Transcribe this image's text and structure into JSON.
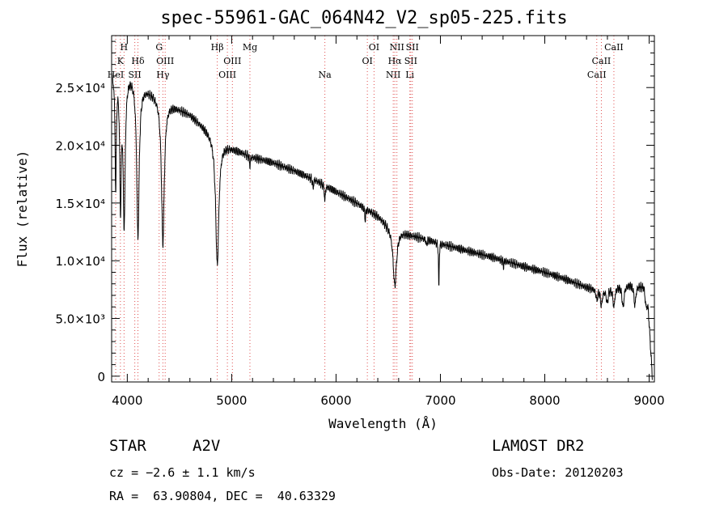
{
  "chart_data": {
    "type": "line",
    "title": "spec-55961-GAC_064N42_V2_sp05-225.fits",
    "xlabel": "Wavelength (Å)",
    "ylabel": "Flux (relative)",
    "xlim": [
      3850,
      9050
    ],
    "ylim": [
      -500,
      29500
    ],
    "xticks": [
      4000,
      5000,
      6000,
      7000,
      8000,
      9000
    ],
    "xtick_labels": [
      "4000",
      "5000",
      "6000",
      "7000",
      "8000",
      "9000"
    ],
    "yticks": [
      0,
      5000,
      10000,
      15000,
      20000,
      25000
    ],
    "ytick_labels": [
      "0",
      "5.0×10³",
      "1.0×10⁴",
      "1.5×10⁴",
      "2.0×10⁴",
      "2.5×10⁴"
    ],
    "series": [
      {
        "continuum": [
          [
            3860,
            26500
          ],
          [
            3950,
            26800
          ],
          [
            4050,
            26200
          ],
          [
            4150,
            25200
          ],
          [
            4300,
            24300
          ],
          [
            4400,
            23700
          ],
          [
            4500,
            23200
          ],
          [
            4600,
            22700
          ],
          [
            4700,
            21900
          ],
          [
            4800,
            21100
          ],
          [
            4900,
            20300
          ],
          [
            5000,
            19800
          ],
          [
            5100,
            19400
          ],
          [
            5200,
            19000
          ],
          [
            5400,
            18500
          ],
          [
            5600,
            17800
          ],
          [
            5800,
            17000
          ],
          [
            6000,
            16000
          ],
          [
            6200,
            15000
          ],
          [
            6400,
            13900
          ],
          [
            6500,
            13100
          ],
          [
            6700,
            12300
          ],
          [
            7000,
            11500
          ],
          [
            7200,
            11000
          ],
          [
            7500,
            10300
          ],
          [
            7800,
            9500
          ],
          [
            8000,
            9000
          ],
          [
            8200,
            8400
          ],
          [
            8400,
            7700
          ],
          [
            8550,
            7400
          ],
          [
            8700,
            7800
          ],
          [
            8850,
            8000
          ],
          [
            8950,
            7700
          ],
          [
            8970,
            6000
          ]
        ],
        "absorption_lines": [
          {
            "center": 3889,
            "depth": 10000,
            "width": 7
          },
          {
            "center": 3935,
            "depth": 11000,
            "width": 9
          },
          {
            "center": 3970,
            "depth": 13000,
            "width": 12
          },
          {
            "center": 4102,
            "depth": 13500,
            "width": 14
          },
          {
            "center": 4341,
            "depth": 12500,
            "width": 16
          },
          {
            "center": 4862,
            "depth": 11000,
            "width": 18
          },
          {
            "center": 5175,
            "depth": 800,
            "width": 5
          },
          {
            "center": 5780,
            "depth": 900,
            "width": 4
          },
          {
            "center": 5893,
            "depth": 1400,
            "width": 5
          },
          {
            "center": 6280,
            "depth": 1000,
            "width": 5
          },
          {
            "center": 6563,
            "depth": 5000,
            "width": 20
          },
          {
            "center": 6867,
            "depth": 600,
            "width": 4
          },
          {
            "center": 6985,
            "depth": 4400,
            "width": 3
          },
          {
            "center": 7605,
            "depth": 500,
            "width": 4
          },
          {
            "center": 8498,
            "depth": 900,
            "width": 8
          },
          {
            "center": 8542,
            "depth": 1300,
            "width": 9
          },
          {
            "center": 8598,
            "depth": 1200,
            "width": 9
          },
          {
            "center": 8662,
            "depth": 1700,
            "width": 10
          },
          {
            "center": 8750,
            "depth": 1900,
            "width": 11
          },
          {
            "center": 8863,
            "depth": 1800,
            "width": 11
          }
        ]
      }
    ],
    "line_markers": [
      {
        "wave": 3889,
        "label": "HeI",
        "row": 2
      },
      {
        "wave": 3934,
        "label": "K",
        "row": 1
      },
      {
        "wave": 3969,
        "label": "H",
        "row": 0
      },
      {
        "wave": 4072,
        "label": "SII",
        "row": 2
      },
      {
        "wave": 4102,
        "label": "Hδ",
        "row": 1
      },
      {
        "wave": 4305,
        "label": "G",
        "row": 0
      },
      {
        "wave": 4341,
        "label": "Hγ",
        "row": 2
      },
      {
        "wave": 4363,
        "label": "OIII",
        "row": 1
      },
      {
        "wave": 4862,
        "label": "Hβ",
        "row": 0
      },
      {
        "wave": 4959,
        "label": "OIII",
        "row": 2
      },
      {
        "wave": 5007,
        "label": "OIII",
        "row": 1
      },
      {
        "wave": 5175,
        "label": "Mg",
        "row": 0
      },
      {
        "wave": 5893,
        "label": "Na",
        "row": 2
      },
      {
        "wave": 6300,
        "label": "OI",
        "row": 1
      },
      {
        "wave": 6364,
        "label": "OI",
        "row": 0
      },
      {
        "wave": 6548,
        "label": "NII",
        "row": 2
      },
      {
        "wave": 6563,
        "label": "Hα",
        "row": 1
      },
      {
        "wave": 6583,
        "label": "NII",
        "row": 0
      },
      {
        "wave": 6707,
        "label": "Li",
        "row": 2
      },
      {
        "wave": 6716,
        "label": "SII",
        "row": 1
      },
      {
        "wave": 6731,
        "label": "SII",
        "row": 0
      },
      {
        "wave": 8498,
        "label": "CaII",
        "row": 2
      },
      {
        "wave": 8542,
        "label": "CaII",
        "row": 1
      },
      {
        "wave": 8662,
        "label": "CaII",
        "row": 0
      }
    ],
    "grid": false
  },
  "info": {
    "obj_class": "STAR",
    "obj_type": "A2V",
    "cz": "cz = −2.6 ± 1.1 km/s",
    "radec": "RA =  63.90804, DEC =  40.63329",
    "survey": "LAMOST DR2",
    "obs_date": "Obs-Date: 20120203"
  },
  "colors": {
    "spectrum": "#000000",
    "marker_line": "#e05050",
    "axis": "#000000",
    "background": "#ffffff"
  }
}
